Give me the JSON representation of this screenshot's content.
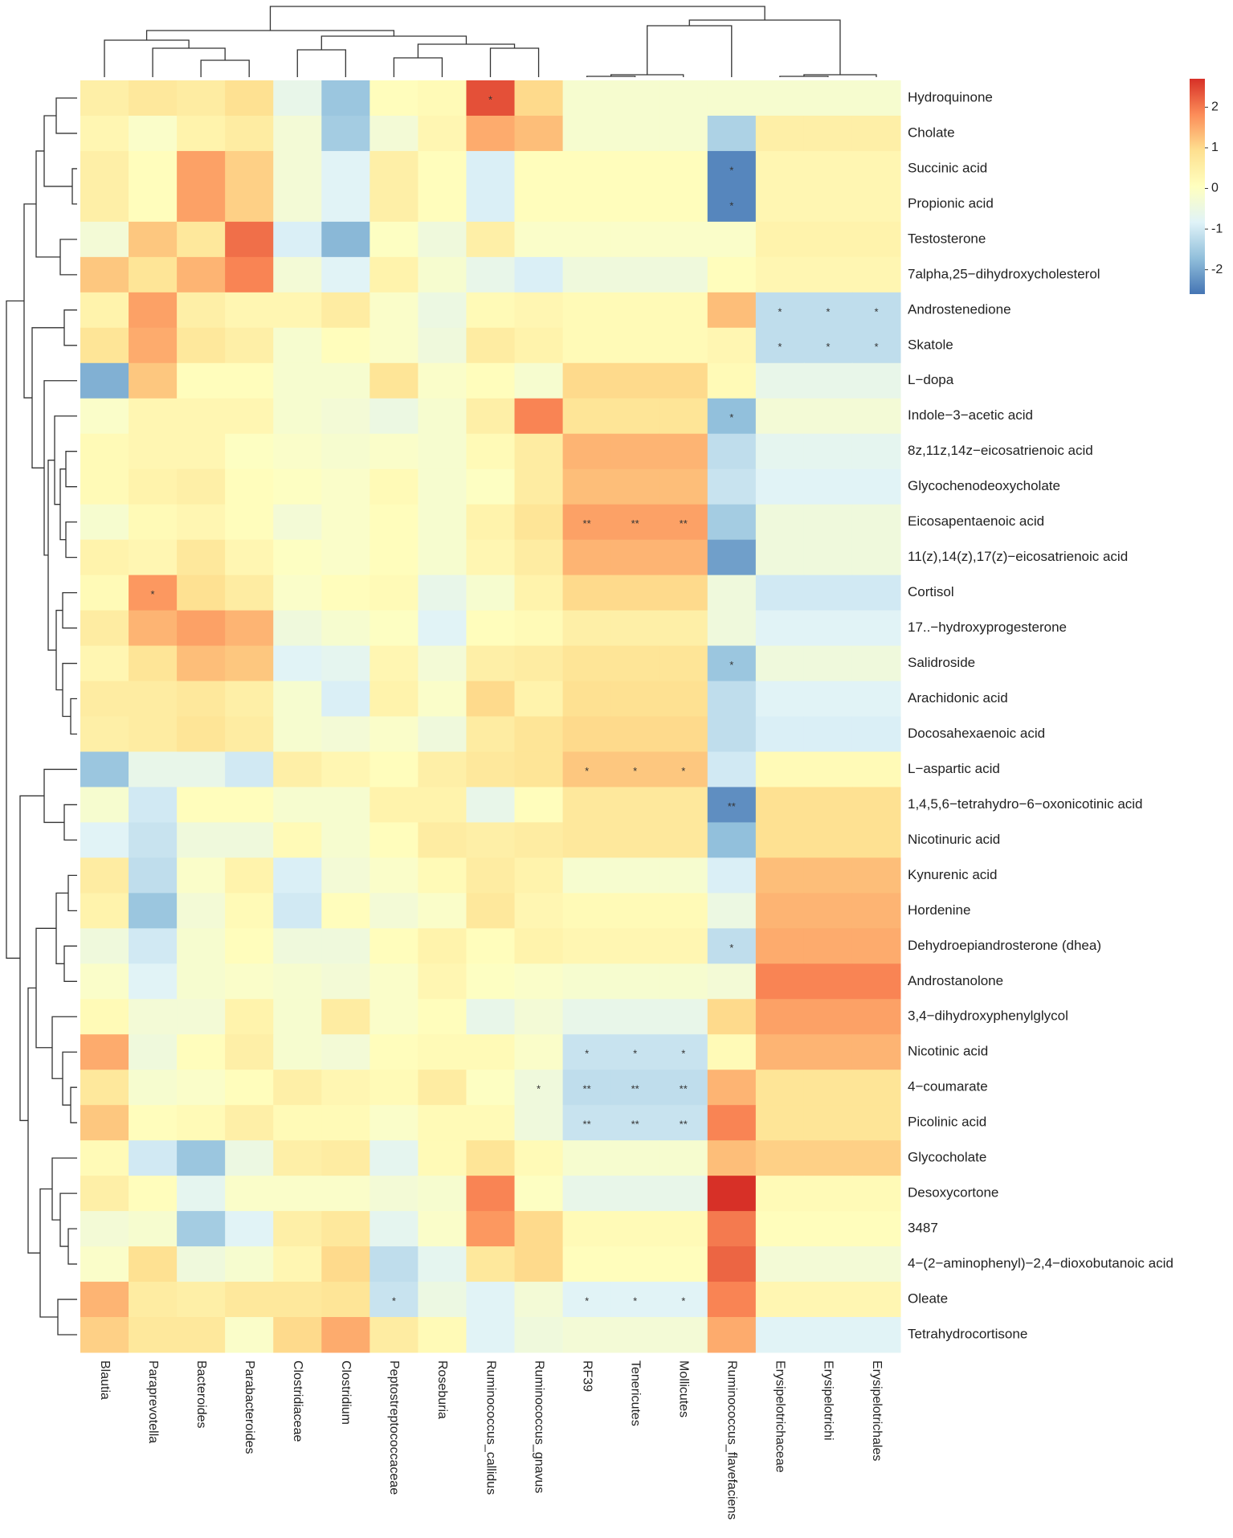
{
  "chart_data": {
    "type": "heatmap",
    "columns": [
      "Blautia",
      "Paraprevotella",
      "Bacteroides",
      "Parabacteroides",
      "Clostridiaceae",
      "Clostridium",
      "Peptostreptococcaceae",
      "Roseburia",
      "Ruminococcus_callidus",
      "Ruminococcus_gnavus",
      "RF39",
      "Tenericutes",
      "Mollicutes",
      "Ruminococcus_flavefaciens",
      "Erysipelotrichaceae",
      "Erysipelotrichi",
      "Erysipelotrichales"
    ],
    "rows": [
      "Hydroquinone",
      "Cholate",
      "Succinic acid",
      "Propionic acid",
      "Testosterone",
      "7alpha,25−dihydroxycholesterol",
      "Androstenedione",
      "Skatole",
      "L−dopa",
      "Indole−3−acetic acid",
      "8z,11z,14z−eicosatrienoic acid",
      "Glycochenodeoxycholate",
      "Eicosapentaenoic acid",
      "11(z),14(z),17(z)−eicosatrienoic acid",
      "Cortisol",
      "17..−hydroxyprogesterone",
      "Salidroside",
      "Arachidonic acid",
      "Docosahexaenoic acid",
      "L−aspartic acid",
      "1,4,5,6−tetrahydro−6−oxonicotinic acid",
      "Nicotinuric acid",
      "Kynurenic acid",
      "Hordenine",
      "Dehydroepiandrosterone (dhea)",
      "Androstanolone",
      "3,4−dihydroxyphenylglycol",
      "Nicotinic acid",
      "4−coumarate",
      "Picolinic acid",
      "Glycocholate",
      "Desoxycortone",
      "3487",
      "4−(2−aminophenyl)−2,4−dioxobutanoic acid",
      "Oleate",
      "Tetrahydrocortisone"
    ],
    "values": [
      [
        0.5,
        0.7,
        0.6,
        0.9,
        -0.6,
        -1.6,
        0.1,
        0.2,
        2.4,
        1.0,
        -0.2,
        -0.2,
        -0.2,
        -0.2,
        -0.2,
        -0.2,
        -0.2
      ],
      [
        0.3,
        -0.1,
        0.4,
        0.6,
        -0.3,
        -1.5,
        -0.3,
        0.3,
        1.5,
        1.3,
        -0.2,
        -0.2,
        -0.2,
        -1.4,
        0.5,
        0.5,
        0.5
      ],
      [
        0.5,
        0.1,
        1.6,
        1.1,
        -0.3,
        -0.8,
        0.5,
        0.1,
        -0.9,
        0.1,
        0.1,
        0.1,
        0.1,
        -2.4,
        0.3,
        0.3,
        0.3
      ],
      [
        0.5,
        0.1,
        1.6,
        1.1,
        -0.3,
        -0.8,
        0.5,
        0.1,
        -0.9,
        0.1,
        0.1,
        0.1,
        0.1,
        -2.4,
        0.3,
        0.3,
        0.3
      ],
      [
        -0.3,
        1.2,
        0.7,
        2.1,
        -0.9,
        -1.8,
        0.0,
        -0.4,
        0.5,
        -0.1,
        -0.1,
        -0.1,
        -0.1,
        -0.1,
        0.4,
        0.4,
        0.4
      ],
      [
        1.2,
        0.8,
        1.4,
        1.9,
        -0.3,
        -0.8,
        0.4,
        -0.2,
        -0.6,
        -0.9,
        -0.4,
        -0.4,
        -0.4,
        0.1,
        0.3,
        0.3,
        0.3
      ],
      [
        0.4,
        1.6,
        0.5,
        0.3,
        0.3,
        0.6,
        -0.1,
        -0.5,
        0.2,
        0.3,
        0.2,
        0.2,
        0.2,
        1.3,
        -1.2,
        -1.2,
        -1.2
      ],
      [
        0.8,
        1.5,
        0.7,
        0.5,
        -0.2,
        0.1,
        -0.1,
        -0.4,
        0.6,
        0.4,
        0.2,
        0.2,
        0.2,
        0.3,
        -1.2,
        -1.2,
        -1.2
      ],
      [
        -1.9,
        1.2,
        0.1,
        0.1,
        -0.2,
        -0.2,
        0.8,
        -0.1,
        0.1,
        -0.2,
        1.0,
        1.0,
        1.0,
        0.2,
        -0.6,
        -0.6,
        -0.6
      ],
      [
        -0.1,
        0.3,
        0.3,
        0.3,
        -0.2,
        -0.3,
        -0.5,
        -0.2,
        0.5,
        1.9,
        0.8,
        0.8,
        0.8,
        -1.7,
        -0.3,
        -0.3,
        -0.3
      ],
      [
        0.2,
        0.3,
        0.3,
        0.0,
        -0.1,
        -0.2,
        -0.1,
        -0.2,
        0.2,
        0.6,
        1.4,
        1.4,
        1.4,
        -1.2,
        -0.7,
        -0.7,
        -0.7
      ],
      [
        0.2,
        0.4,
        0.5,
        0.1,
        0.0,
        -0.1,
        0.2,
        -0.2,
        0.0,
        0.6,
        1.3,
        1.3,
        1.3,
        -1.1,
        -0.8,
        -0.8,
        -0.8
      ],
      [
        -0.2,
        0.2,
        0.3,
        0.1,
        -0.3,
        -0.1,
        0.1,
        -0.2,
        0.4,
        0.8,
        1.6,
        1.6,
        1.6,
        -1.5,
        -0.4,
        -0.4,
        -0.4
      ],
      [
        0.4,
        0.3,
        0.7,
        0.3,
        0.0,
        -0.1,
        0.1,
        -0.2,
        0.3,
        0.6,
        1.4,
        1.4,
        1.4,
        -2.1,
        -0.4,
        -0.4,
        -0.4
      ],
      [
        0.2,
        1.7,
        0.9,
        0.6,
        -0.1,
        0.1,
        0.2,
        -0.6,
        -0.2,
        0.4,
        1.0,
        1.0,
        1.0,
        -0.4,
        -1.0,
        -1.0,
        -1.0
      ],
      [
        0.6,
        1.4,
        1.6,
        1.4,
        -0.4,
        -0.2,
        0.0,
        -0.8,
        0.1,
        0.2,
        0.5,
        0.5,
        0.5,
        -0.4,
        -0.8,
        -0.8,
        -0.8
      ],
      [
        0.3,
        0.8,
        1.3,
        1.2,
        -0.8,
        -0.7,
        0.3,
        -0.3,
        0.5,
        0.6,
        0.8,
        0.8,
        0.8,
        -1.6,
        -0.4,
        -0.4,
        -0.4
      ],
      [
        0.6,
        0.6,
        0.7,
        0.5,
        -0.2,
        -0.9,
        0.4,
        -0.1,
        1.0,
        0.4,
        0.9,
        0.9,
        0.9,
        -1.2,
        -0.8,
        -0.8,
        -0.8
      ],
      [
        0.5,
        0.6,
        0.8,
        0.6,
        -0.2,
        -0.3,
        -0.1,
        -0.4,
        0.6,
        0.8,
        1.0,
        1.0,
        1.0,
        -1.2,
        -0.9,
        -0.9,
        -0.9
      ],
      [
        -1.6,
        -0.6,
        -0.6,
        -1.0,
        0.5,
        0.3,
        0.1,
        0.5,
        0.7,
        0.8,
        1.2,
        1.2,
        1.2,
        -1.0,
        0.2,
        0.2,
        0.2
      ],
      [
        -0.2,
        -1.0,
        0.1,
        0.1,
        -0.2,
        -0.2,
        0.4,
        0.4,
        -0.6,
        0.1,
        0.7,
        0.7,
        0.7,
        -2.3,
        0.9,
        0.9,
        0.9
      ],
      [
        -0.8,
        -1.1,
        -0.4,
        -0.4,
        0.2,
        -0.2,
        0.1,
        0.6,
        0.5,
        0.6,
        0.7,
        0.7,
        0.7,
        -1.7,
        0.9,
        0.9,
        0.9
      ],
      [
        0.6,
        -1.2,
        -0.1,
        0.4,
        -0.9,
        -0.3,
        -0.1,
        0.2,
        0.6,
        0.4,
        -0.2,
        -0.2,
        -0.2,
        -0.9,
        1.3,
        1.3,
        1.3
      ],
      [
        0.4,
        -1.6,
        -0.3,
        0.2,
        -1.0,
        0.1,
        -0.3,
        -0.1,
        0.7,
        0.3,
        0.2,
        0.2,
        0.2,
        -0.5,
        1.4,
        1.4,
        1.4
      ],
      [
        -0.4,
        -1.0,
        -0.2,
        0.1,
        -0.4,
        -0.4,
        0.1,
        0.4,
        0.1,
        0.4,
        0.3,
        0.3,
        0.3,
        -1.2,
        1.5,
        1.5,
        1.5
      ],
      [
        -0.1,
        -0.8,
        -0.2,
        -0.1,
        -0.2,
        -0.3,
        -0.1,
        0.3,
        0.0,
        -0.1,
        -0.2,
        -0.2,
        -0.2,
        -0.3,
        1.9,
        1.9,
        1.9
      ],
      [
        0.2,
        -0.3,
        -0.3,
        0.4,
        -0.2,
        0.6,
        -0.1,
        0.1,
        -0.6,
        -0.3,
        -0.6,
        -0.6,
        -0.6,
        1.0,
        1.6,
        1.6,
        1.6
      ],
      [
        1.5,
        -0.4,
        0.1,
        0.5,
        -0.2,
        -0.3,
        0.1,
        0.2,
        0.2,
        -0.1,
        -1.1,
        -1.1,
        -1.1,
        0.2,
        1.4,
        1.4,
        1.4
      ],
      [
        0.7,
        -0.2,
        -0.1,
        0.1,
        0.5,
        0.3,
        0.2,
        0.6,
        0.0,
        -0.4,
        -1.2,
        -1.2,
        -1.2,
        1.4,
        0.8,
        0.8,
        0.8
      ],
      [
        1.2,
        0.1,
        0.2,
        0.5,
        0.2,
        0.2,
        -0.1,
        0.2,
        0.2,
        -0.4,
        -1.1,
        -1.1,
        -1.1,
        1.9,
        0.8,
        0.8,
        0.8
      ],
      [
        0.2,
        -1.0,
        -1.6,
        -0.5,
        0.5,
        0.6,
        -0.7,
        0.2,
        0.8,
        0.2,
        -0.2,
        -0.2,
        -0.2,
        1.3,
        1.1,
        1.1,
        1.1
      ],
      [
        0.5,
        0.1,
        -0.7,
        -0.1,
        -0.1,
        -0.1,
        -0.3,
        -0.2,
        1.9,
        0.0,
        -0.6,
        -0.6,
        -0.6,
        2.7,
        0.2,
        0.2,
        0.2
      ],
      [
        -0.3,
        -0.2,
        -1.5,
        -0.8,
        0.5,
        0.7,
        -0.7,
        -0.1,
        1.7,
        1.0,
        0.2,
        0.2,
        0.2,
        2.0,
        0.1,
        0.1,
        0.1
      ],
      [
        -0.1,
        0.9,
        -0.4,
        -0.2,
        0.3,
        1.0,
        -1.2,
        -0.7,
        0.7,
        1.0,
        0.1,
        0.1,
        0.1,
        2.2,
        -0.3,
        -0.3,
        -0.3
      ],
      [
        1.4,
        0.6,
        0.5,
        0.7,
        0.7,
        0.8,
        -1.1,
        -0.5,
        -0.8,
        -0.3,
        -0.8,
        -0.8,
        -0.8,
        1.9,
        0.3,
        0.3,
        0.3
      ],
      [
        1.1,
        0.7,
        0.7,
        -0.1,
        1.0,
        1.5,
        0.6,
        0.2,
        -0.8,
        -0.4,
        -0.3,
        -0.3,
        -0.3,
        1.5,
        -0.8,
        -0.8,
        -0.8
      ]
    ],
    "significance": [
      [
        null,
        null,
        null,
        null,
        null,
        null,
        null,
        null,
        "*",
        null,
        null,
        null,
        null,
        null,
        null,
        null,
        null
      ],
      [
        null,
        null,
        null,
        null,
        null,
        null,
        null,
        null,
        null,
        null,
        null,
        null,
        null,
        null,
        null,
        null,
        null
      ],
      [
        null,
        null,
        null,
        null,
        null,
        null,
        null,
        null,
        null,
        null,
        null,
        null,
        null,
        "*",
        null,
        null,
        null
      ],
      [
        null,
        null,
        null,
        null,
        null,
        null,
        null,
        null,
        null,
        null,
        null,
        null,
        null,
        "*",
        null,
        null,
        null
      ],
      [
        null,
        null,
        null,
        null,
        null,
        null,
        null,
        null,
        null,
        null,
        null,
        null,
        null,
        null,
        null,
        null,
        null
      ],
      [
        null,
        null,
        null,
        null,
        null,
        null,
        null,
        null,
        null,
        null,
        null,
        null,
        null,
        null,
        null,
        null,
        null
      ],
      [
        null,
        null,
        null,
        null,
        null,
        null,
        null,
        null,
        null,
        null,
        null,
        null,
        null,
        null,
        "*",
        "*",
        "*"
      ],
      [
        null,
        null,
        null,
        null,
        null,
        null,
        null,
        null,
        null,
        null,
        null,
        null,
        null,
        null,
        "*",
        "*",
        "*"
      ],
      [
        null,
        null,
        null,
        null,
        null,
        null,
        null,
        null,
        null,
        null,
        null,
        null,
        null,
        null,
        null,
        null,
        null
      ],
      [
        null,
        null,
        null,
        null,
        null,
        null,
        null,
        null,
        null,
        null,
        null,
        null,
        null,
        "*",
        null,
        null,
        null
      ],
      [
        null,
        null,
        null,
        null,
        null,
        null,
        null,
        null,
        null,
        null,
        null,
        null,
        null,
        null,
        null,
        null,
        null
      ],
      [
        null,
        null,
        null,
        null,
        null,
        null,
        null,
        null,
        null,
        null,
        null,
        null,
        null,
        null,
        null,
        null,
        null
      ],
      [
        null,
        null,
        null,
        null,
        null,
        null,
        null,
        null,
        null,
        null,
        "**",
        "**",
        "**",
        null,
        null,
        null,
        null
      ],
      [
        null,
        null,
        null,
        null,
        null,
        null,
        null,
        null,
        null,
        null,
        null,
        null,
        null,
        null,
        null,
        null,
        null
      ],
      [
        null,
        "*",
        null,
        null,
        null,
        null,
        null,
        null,
        null,
        null,
        null,
        null,
        null,
        null,
        null,
        null,
        null
      ],
      [
        null,
        null,
        null,
        null,
        null,
        null,
        null,
        null,
        null,
        null,
        null,
        null,
        null,
        null,
        null,
        null,
        null
      ],
      [
        null,
        null,
        null,
        null,
        null,
        null,
        null,
        null,
        null,
        null,
        null,
        null,
        null,
        "*",
        null,
        null,
        null
      ],
      [
        null,
        null,
        null,
        null,
        null,
        null,
        null,
        null,
        null,
        null,
        null,
        null,
        null,
        null,
        null,
        null,
        null
      ],
      [
        null,
        null,
        null,
        null,
        null,
        null,
        null,
        null,
        null,
        null,
        null,
        null,
        null,
        null,
        null,
        null,
        null
      ],
      [
        null,
        null,
        null,
        null,
        null,
        null,
        null,
        null,
        null,
        null,
        "*",
        "*",
        "*",
        null,
        null,
        null,
        null
      ],
      [
        null,
        null,
        null,
        null,
        null,
        null,
        null,
        null,
        null,
        null,
        null,
        null,
        null,
        "**",
        null,
        null,
        null
      ],
      [
        null,
        null,
        null,
        null,
        null,
        null,
        null,
        null,
        null,
        null,
        null,
        null,
        null,
        null,
        null,
        null,
        null
      ],
      [
        null,
        null,
        null,
        null,
        null,
        null,
        null,
        null,
        null,
        null,
        null,
        null,
        null,
        null,
        null,
        null,
        null
      ],
      [
        null,
        null,
        null,
        null,
        null,
        null,
        null,
        null,
        null,
        null,
        null,
        null,
        null,
        null,
        null,
        null,
        null
      ],
      [
        null,
        null,
        null,
        null,
        null,
        null,
        null,
        null,
        null,
        null,
        null,
        null,
        null,
        "*",
        null,
        null,
        null
      ],
      [
        null,
        null,
        null,
        null,
        null,
        null,
        null,
        null,
        null,
        null,
        null,
        null,
        null,
        null,
        null,
        null,
        null
      ],
      [
        null,
        null,
        null,
        null,
        null,
        null,
        null,
        null,
        null,
        null,
        null,
        null,
        null,
        null,
        null,
        null,
        null
      ],
      [
        null,
        null,
        null,
        null,
        null,
        null,
        null,
        null,
        null,
        null,
        "*",
        "*",
        "*",
        null,
        null,
        null,
        null
      ],
      [
        null,
        null,
        null,
        null,
        null,
        null,
        null,
        null,
        null,
        "*",
        "**",
        "**",
        "**",
        null,
        null,
        null,
        null
      ],
      [
        null,
        null,
        null,
        null,
        null,
        null,
        null,
        null,
        null,
        null,
        "**",
        "**",
        "**",
        null,
        null,
        null,
        null
      ],
      [
        null,
        null,
        null,
        null,
        null,
        null,
        null,
        null,
        null,
        null,
        null,
        null,
        null,
        null,
        null,
        null,
        null
      ],
      [
        null,
        null,
        null,
        null,
        null,
        null,
        null,
        null,
        null,
        null,
        null,
        null,
        null,
        null,
        null,
        null,
        null
      ],
      [
        null,
        null,
        null,
        null,
        null,
        null,
        null,
        null,
        null,
        null,
        null,
        null,
        null,
        null,
        null,
        null,
        null
      ],
      [
        null,
        null,
        null,
        null,
        null,
        null,
        null,
        null,
        null,
        null,
        null,
        null,
        null,
        null,
        null,
        null,
        null
      ],
      [
        null,
        null,
        null,
        null,
        null,
        null,
        "*",
        null,
        null,
        null,
        "*",
        "*",
        "*",
        null,
        null,
        null,
        null
      ],
      [
        null,
        null,
        null,
        null,
        null,
        null,
        null,
        null,
        null,
        null,
        null,
        null,
        null,
        null,
        null,
        null,
        null
      ]
    ],
    "colorscale": [
      "#4575b4",
      "#91bfdb",
      "#e0f3f8",
      "#ffffbf",
      "#fee090",
      "#fc8d59",
      "#d73027"
    ],
    "zlim": [
      -2.6,
      2.7
    ],
    "zticks": [
      -2,
      -1,
      0,
      1,
      2
    ]
  }
}
